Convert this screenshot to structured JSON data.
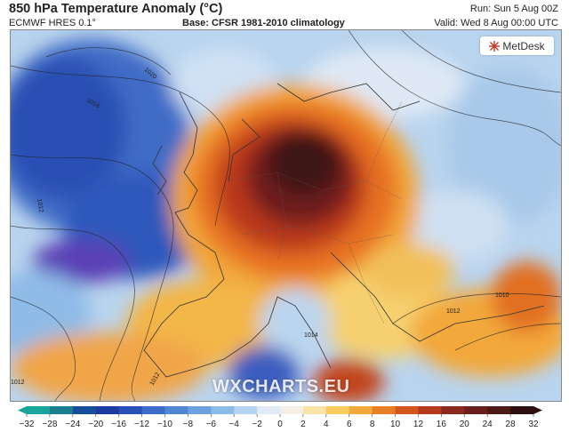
{
  "header": {
    "title": "850 hPa Temperature Anomaly (°C)",
    "model": "ECMWF HRES 0.1°",
    "base": "Base: CFSR 1981-2010 climatology",
    "run": "Run: Sun 5 Aug 00Z",
    "valid": "Valid: Wed 8 Aug 00:00 UTC"
  },
  "logo": {
    "text": "MetDesk",
    "icon": "metdesk-star-icon"
  },
  "watermark": "WXCHARTS.EU",
  "map": {
    "isobar_labels": [
      "1020",
      "1016",
      "1012",
      "1012",
      "1012",
      "1010",
      "1014",
      "1012"
    ]
  },
  "colorbar": {
    "ticks": [
      "−32",
      "−28",
      "−24",
      "−20",
      "−16",
      "−12",
      "−10",
      "−8",
      "−6",
      "−4",
      "−2",
      "0",
      "2",
      "4",
      "6",
      "8",
      "10",
      "12",
      "16",
      "20",
      "24",
      "28",
      "32"
    ],
    "colors": [
      "#1aa59b",
      "#1b7f8f",
      "#154f9a",
      "#1c3aa0",
      "#2950b8",
      "#3c6cc8",
      "#4f86d4",
      "#6ca0de",
      "#8dbbe8",
      "#b6d3f0",
      "#dfeaf6",
      "#f5f0e6",
      "#f9e3a6",
      "#f8cc5e",
      "#f3a83a",
      "#ea7e26",
      "#d4561f",
      "#b53a1d",
      "#8a2a1e",
      "#6b1f1c",
      "#4d1a17",
      "#2f1010"
    ],
    "colors_ticks_note": ""
  }
}
